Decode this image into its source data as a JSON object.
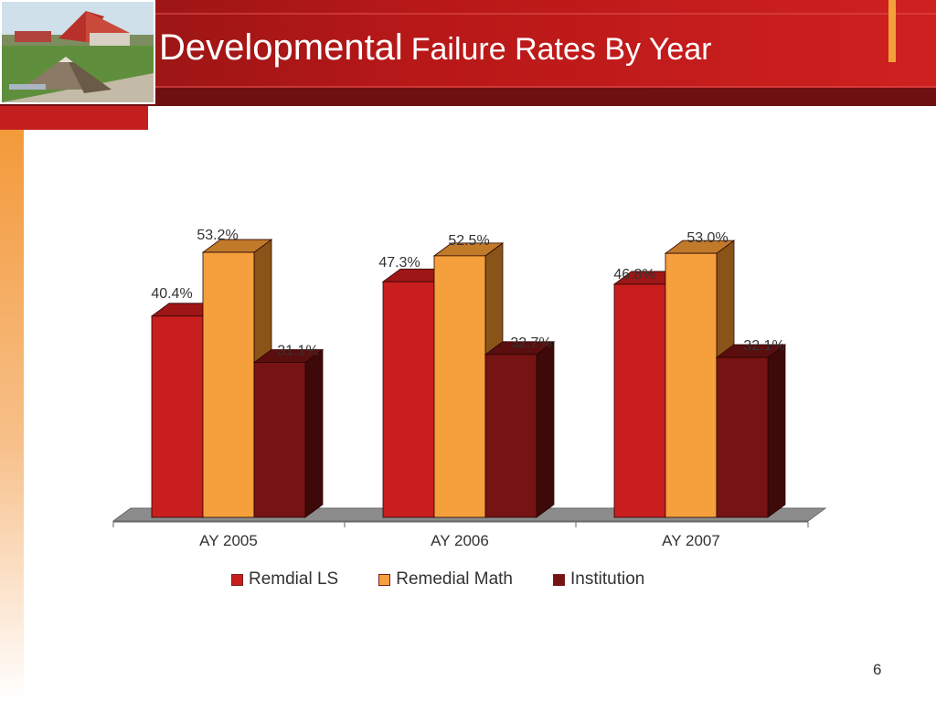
{
  "slide": {
    "title_main": "Developmental",
    "title_rest": "Failure Rates By Year",
    "page_number": "6"
  },
  "chart_data": {
    "type": "bar",
    "title": "",
    "categories": [
      "AY 2005",
      "AY 2006",
      "AY 2007"
    ],
    "series": [
      {
        "name": "Remdial LS",
        "values": [
          40.4,
          47.3,
          46.8
        ],
        "labels": [
          "40.4%",
          "47.3%",
          "46.8%"
        ],
        "color": "#c81e1e",
        "side_color": "#8a1010",
        "top_color": "#9e1616"
      },
      {
        "name": "Remedial Math",
        "values": [
          53.2,
          52.5,
          53.0
        ],
        "labels": [
          "53.2%",
          "52.5%",
          "53.0%"
        ],
        "color": "#f5a03c",
        "side_color": "#8a5418",
        "top_color": "#c07a2a"
      },
      {
        "name": "Institution",
        "values": [
          31.1,
          32.7,
          32.1
        ],
        "labels": [
          "31.1%",
          "32.7%",
          "32.1%"
        ],
        "color": "#761313",
        "side_color": "#3e0909",
        "top_color": "#5a0e0e"
      }
    ],
    "ylim": [
      0,
      60
    ],
    "xlabel": "",
    "ylabel": "",
    "grid": false,
    "legend": "bottom",
    "three_d": true
  }
}
